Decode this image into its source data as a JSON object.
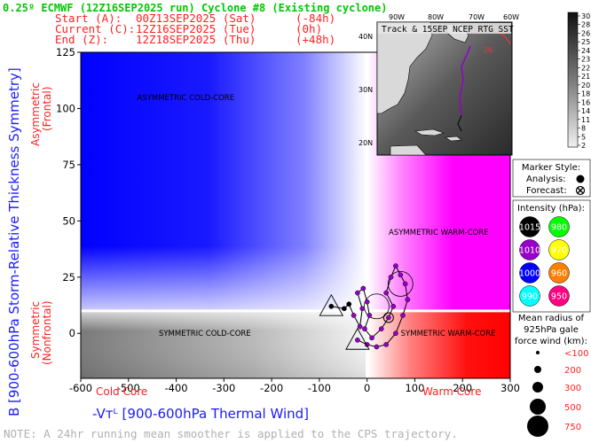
{
  "header": {
    "title": "0.25º ECMWF (12Z16SEP2025 run) Cyclone #8 (Existing cyclone)",
    "rows": [
      {
        "label": "Start (A):",
        "time": "00Z13SEP2025 (Sat)",
        "offset": "(-84h)"
      },
      {
        "label": "Current (C):",
        "time": "12Z16SEP2025 (Tue)",
        "offset": "(0h)"
      },
      {
        "label": "End (Z):",
        "time": "12Z18SEP2025 (Thu)",
        "offset": "(+48h)"
      }
    ]
  },
  "colors": {
    "title": "#00c800",
    "header_rows": "#ff2020",
    "axis_blue": "#1a1aff",
    "axis_red": "#ff2020",
    "cold_core_region": "#0000ff",
    "warm_core_region": "#ff00ff",
    "warm_sym_region": "#ff0000",
    "cold_sym_region": "#808080"
  },
  "chart_data": {
    "type": "scatter",
    "xlim": [
      -600,
      300
    ],
    "ylim": [
      -20,
      125
    ],
    "x_ticks": [
      -600,
      -500,
      -400,
      -300,
      -200,
      -100,
      0,
      100,
      200,
      300
    ],
    "y_ticks": [
      0,
      25,
      50,
      75,
      100,
      125
    ],
    "threshold_y": 10,
    "threshold_x": 0,
    "xlabel": "-Vᴛᴸ [900-600hPa Thermal Wind]",
    "ylabel": "B [900-600hPa Storm-Relative Thickness Symmetry]",
    "y_side_top": "Asymmetric",
    "y_side_top_sub": "(Frontal)",
    "y_side_bottom": "Symmetric",
    "y_side_bottom_sub": "(Nonfrontal)",
    "x_side_left": "Cold Core",
    "x_side_right": "Warm Core",
    "regions": [
      {
        "label": "ASYMMETRIC COLD-CORE",
        "x": -380,
        "y": 105
      },
      {
        "label": "ASYMMETRIC WARM-CORE",
        "x": 150,
        "y": 45
      },
      {
        "label": "SYMMETRIC COLD-CORE",
        "x": -340,
        "y": 0
      },
      {
        "label": "SYMMETRIC WARM-CORE",
        "x": 170,
        "y": 0
      }
    ],
    "trajectory": [
      {
        "x": -75,
        "y": 12,
        "color": "#000000",
        "marker": "A"
      },
      {
        "x": -48,
        "y": 11,
        "color": "#000000"
      },
      {
        "x": -38,
        "y": 13,
        "color": "#000000"
      },
      {
        "x": -28,
        "y": 8,
        "color": "#9600c8"
      },
      {
        "x": -15,
        "y": 3,
        "color": "#9600c8"
      },
      {
        "x": -10,
        "y": 11,
        "color": "#9600c8"
      },
      {
        "x": -20,
        "y": 18,
        "color": "#9600c8"
      },
      {
        "x": -8,
        "y": 20,
        "color": "#9600c8"
      },
      {
        "x": 0,
        "y": 14,
        "color": "#9600c8"
      },
      {
        "x": 5,
        "y": 8,
        "color": "#9600c8"
      },
      {
        "x": -5,
        "y": 2,
        "color": "#9600c8"
      },
      {
        "x": 10,
        "y": -2,
        "color": "#9600c8"
      },
      {
        "x": 30,
        "y": 2,
        "color": "#9600c8"
      },
      {
        "x": 45,
        "y": 7,
        "color": "#9600c8",
        "marker": "C"
      },
      {
        "x": 55,
        "y": 12,
        "color": "#9600c8"
      },
      {
        "x": 40,
        "y": 18,
        "color": "#9600c8"
      },
      {
        "x": 50,
        "y": 25,
        "color": "#9600c8"
      },
      {
        "x": 60,
        "y": 30,
        "color": "#9600c8"
      },
      {
        "x": 70,
        "y": 26,
        "color": "#9600c8"
      },
      {
        "x": 80,
        "y": 22,
        "color": "#9600c8"
      },
      {
        "x": 85,
        "y": 15,
        "color": "#9600c8"
      },
      {
        "x": 75,
        "y": 8,
        "color": "#9600c8"
      },
      {
        "x": 60,
        "y": 0,
        "color": "#9600c8"
      },
      {
        "x": 40,
        "y": -5,
        "color": "#9600c8"
      },
      {
        "x": 20,
        "y": -6,
        "color": "#9600c8"
      },
      {
        "x": 0,
        "y": -5,
        "color": "#9600c8"
      },
      {
        "x": -20,
        "y": -3,
        "color": "#9600c8",
        "marker": "Z"
      }
    ],
    "rmw_circles": [
      {
        "x": 20,
        "y": 12
      },
      {
        "x": 70,
        "y": 22
      }
    ]
  },
  "map": {
    "title": "Track & 15SEP NCEP RTG SST",
    "lon_labels": [
      "90W",
      "80W",
      "70W",
      "60W"
    ],
    "lat_labels": [
      "40N",
      "30N",
      "20N"
    ],
    "track_label": "26",
    "colorbar_ticks": [
      "30",
      "28",
      "26",
      "25",
      "24",
      "23",
      "22",
      "21",
      "20",
      "18",
      "16",
      "14",
      "11",
      "8",
      "5",
      "2"
    ]
  },
  "legend": {
    "marker_title": "Marker Style:",
    "analysis_label": "Analysis:",
    "forecast_label": "Forecast:",
    "intensity_title": "Intensity (hPa):",
    "intensity_items": [
      {
        "label": "1015",
        "color": "#000000",
        "text_color": "#ffffff"
      },
      {
        "label": "980",
        "color": "#00ff00",
        "text_color": "#ffffff"
      },
      {
        "label": "1010",
        "color": "#9600c8",
        "text_color": "#ffffff"
      },
      {
        "label": "970",
        "color": "#ffff00",
        "text_color": "#ffffff"
      },
      {
        "label": "1000",
        "color": "#0000ff",
        "text_color": "#ffffff"
      },
      {
        "label": "960",
        "color": "#ff8000",
        "text_color": "#ffffff"
      },
      {
        "label": "990",
        "color": "#00ffff",
        "text_color": "#ffffff"
      },
      {
        "label": "950",
        "color": "#ff0080",
        "text_color": "#ffffff"
      }
    ],
    "radius_title_lines": [
      "Mean radius of",
      "925hPa gale",
      "force wind (km):"
    ],
    "radius_items": [
      {
        "label": "<100",
        "size": 2
      },
      {
        "label": "200",
        "size": 4
      },
      {
        "label": "300",
        "size": 6
      },
      {
        "label": "500",
        "size": 9
      },
      {
        "label": "750",
        "size": 12
      }
    ]
  },
  "note": "NOTE:  A 24hr running mean smoother is applied to the CPS trajectory."
}
